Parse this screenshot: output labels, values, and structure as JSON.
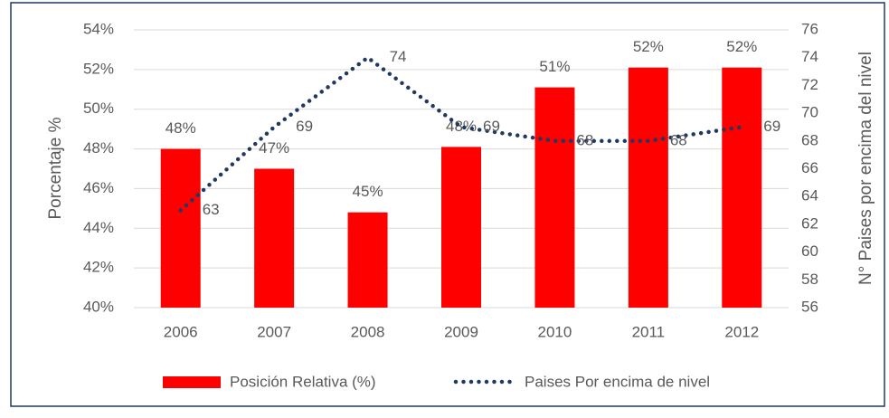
{
  "chart_data": {
    "type": "bar_line",
    "categories": [
      "2006",
      "2007",
      "2008",
      "2009",
      "2010",
      "2011",
      "2012"
    ],
    "series": [
      {
        "name": "Posición Relativa (%)",
        "type": "bar",
        "color": "#ff0000",
        "values": [
          48,
          47,
          44.8,
          48.1,
          51.1,
          52.1,
          52.1
        ],
        "value_labels": [
          "48%",
          "47%",
          "45%",
          "48%",
          "51%",
          "52%",
          "52%"
        ]
      },
      {
        "name": "Paises Por encima de nivel",
        "type": "line",
        "axis": "y2",
        "color": "#1f3864",
        "values": [
          63,
          69,
          74,
          69,
          68,
          68,
          69
        ]
      }
    ],
    "ylabel": "Porcentaje %",
    "y2label": "N° Paises por encima del nivel",
    "ylim": [
      40,
      54
    ],
    "yticks": [
      {
        "value": 40,
        "label": "40%"
      },
      {
        "value": 42,
        "label": "42%"
      },
      {
        "value": 44,
        "label": "44%"
      },
      {
        "value": 46,
        "label": "46%"
      },
      {
        "value": 48,
        "label": "48%"
      },
      {
        "value": 50,
        "label": "50%"
      },
      {
        "value": 52,
        "label": "52%"
      },
      {
        "value": 54,
        "label": "54%"
      }
    ],
    "y2lim": [
      56,
      76
    ],
    "y2ticks": [
      56,
      58,
      60,
      62,
      64,
      66,
      68,
      70,
      72,
      74,
      76
    ],
    "grid": true,
    "legend": "bottom"
  }
}
